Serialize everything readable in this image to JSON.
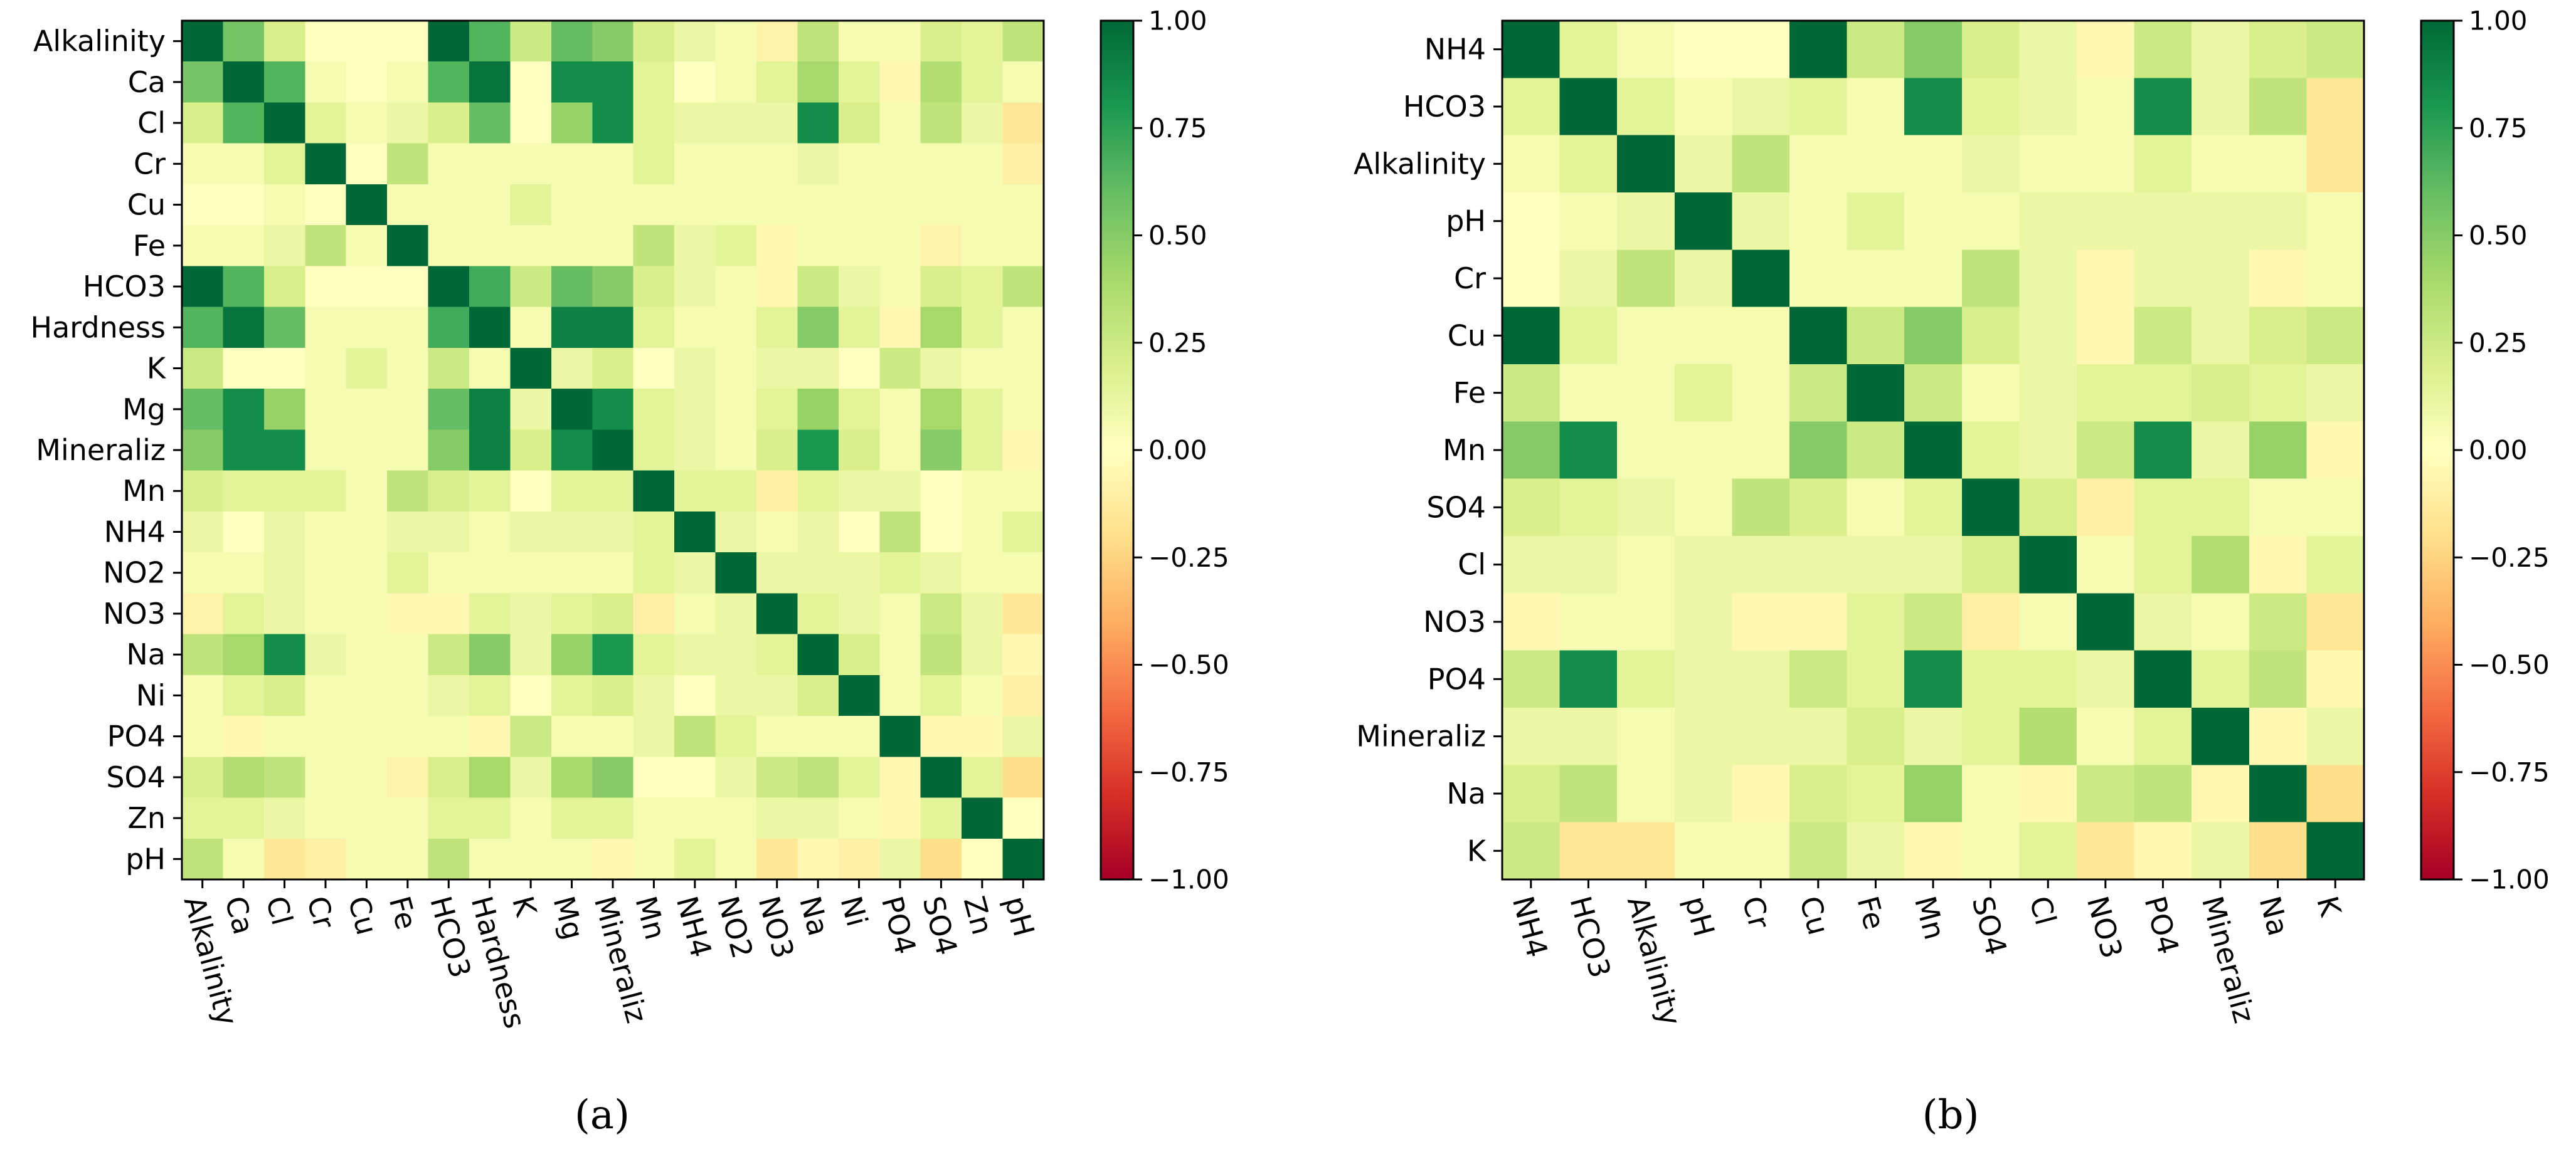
{
  "chart_data": [
    {
      "type": "heatmap",
      "panel_label": "(a)",
      "title": "",
      "xlabel": "",
      "ylabel": "",
      "labels": [
        "Alkalinity",
        "Ca",
        "Cl",
        "Cr",
        "Cu",
        "Fe",
        "HCO3",
        "Hardness",
        "K",
        "Mg",
        "Mineraliz",
        "Mn",
        "NH4",
        "NO2",
        "NO3",
        "Na",
        "Ni",
        "PO4",
        "SO4",
        "Zn",
        "pH"
      ],
      "matrix": [
        [
          1.0,
          0.55,
          0.2,
          0.0,
          0.0,
          0.0,
          1.0,
          0.65,
          0.25,
          0.6,
          0.5,
          0.2,
          0.1,
          0.05,
          -0.08,
          0.3,
          0.05,
          0.05,
          0.2,
          0.15,
          0.3
        ],
        [
          0.55,
          1.0,
          0.65,
          0.05,
          0.0,
          0.05,
          0.65,
          0.95,
          0.0,
          0.85,
          0.85,
          0.15,
          0.0,
          0.05,
          0.15,
          0.4,
          0.15,
          -0.05,
          0.35,
          0.15,
          0.05
        ],
        [
          0.2,
          0.65,
          1.0,
          0.15,
          0.05,
          0.1,
          0.2,
          0.6,
          0.0,
          0.45,
          0.85,
          0.15,
          0.1,
          0.1,
          0.1,
          0.85,
          0.2,
          0.05,
          0.3,
          0.1,
          -0.15
        ],
        [
          0.05,
          0.05,
          0.15,
          1.0,
          0.0,
          0.3,
          0.05,
          0.05,
          0.05,
          0.05,
          0.05,
          0.15,
          0.05,
          0.05,
          0.05,
          0.1,
          0.05,
          0.05,
          0.05,
          0.05,
          -0.1
        ],
        [
          0.0,
          0.0,
          0.05,
          0.0,
          1.0,
          0.05,
          0.05,
          0.05,
          0.15,
          0.05,
          0.05,
          0.05,
          0.05,
          0.05,
          0.05,
          0.05,
          0.05,
          0.05,
          0.05,
          0.05,
          0.05
        ],
        [
          0.05,
          0.05,
          0.1,
          0.3,
          0.05,
          1.0,
          0.05,
          0.05,
          0.05,
          0.05,
          0.05,
          0.3,
          0.1,
          0.15,
          -0.05,
          0.05,
          0.05,
          0.05,
          -0.08,
          0.05,
          0.05
        ],
        [
          1.0,
          0.65,
          0.2,
          0.0,
          0.0,
          0.0,
          1.0,
          0.7,
          0.25,
          0.6,
          0.5,
          0.2,
          0.1,
          0.05,
          -0.05,
          0.25,
          0.1,
          0.05,
          0.2,
          0.15,
          0.3
        ],
        [
          0.65,
          0.95,
          0.6,
          0.05,
          0.05,
          0.05,
          0.7,
          1.0,
          0.05,
          0.9,
          0.9,
          0.15,
          0.05,
          0.05,
          0.15,
          0.5,
          0.15,
          -0.05,
          0.4,
          0.15,
          0.05
        ],
        [
          0.25,
          0.0,
          0.0,
          0.05,
          0.15,
          0.05,
          0.25,
          0.05,
          1.0,
          0.1,
          0.2,
          0.0,
          0.1,
          0.05,
          0.1,
          0.1,
          0.0,
          0.25,
          0.1,
          0.05,
          0.05
        ],
        [
          0.6,
          0.85,
          0.45,
          0.05,
          0.05,
          0.05,
          0.6,
          0.9,
          0.1,
          1.0,
          0.85,
          0.15,
          0.1,
          0.05,
          0.15,
          0.45,
          0.15,
          0.05,
          0.4,
          0.15,
          0.05
        ],
        [
          0.5,
          0.85,
          0.85,
          0.05,
          0.05,
          0.05,
          0.5,
          0.9,
          0.2,
          0.85,
          1.0,
          0.15,
          0.1,
          0.05,
          0.2,
          0.8,
          0.2,
          0.05,
          0.5,
          0.15,
          -0.05
        ],
        [
          0.2,
          0.15,
          0.15,
          0.15,
          0.05,
          0.3,
          0.2,
          0.15,
          0.0,
          0.15,
          0.15,
          1.0,
          0.15,
          0.15,
          -0.1,
          0.15,
          0.1,
          0.1,
          0.0,
          0.05,
          0.05
        ],
        [
          0.1,
          0.0,
          0.1,
          0.05,
          0.05,
          0.1,
          0.1,
          0.05,
          0.1,
          0.1,
          0.1,
          0.15,
          1.0,
          0.1,
          0.05,
          0.1,
          0.0,
          0.3,
          0.0,
          0.05,
          0.15
        ],
        [
          0.05,
          0.05,
          0.1,
          0.05,
          0.05,
          0.15,
          0.05,
          0.05,
          0.05,
          0.05,
          0.05,
          0.15,
          0.1,
          1.0,
          0.1,
          0.1,
          0.1,
          0.15,
          0.1,
          0.05,
          0.05
        ],
        [
          -0.08,
          0.15,
          0.1,
          0.05,
          0.05,
          -0.05,
          -0.05,
          0.15,
          0.1,
          0.15,
          0.2,
          -0.1,
          0.05,
          0.1,
          1.0,
          0.15,
          0.1,
          0.05,
          0.25,
          0.1,
          -0.15
        ],
        [
          0.3,
          0.4,
          0.85,
          0.1,
          0.05,
          0.05,
          0.25,
          0.5,
          0.1,
          0.45,
          0.8,
          0.15,
          0.1,
          0.1,
          0.15,
          1.0,
          0.2,
          0.05,
          0.3,
          0.1,
          -0.05
        ],
        [
          0.05,
          0.15,
          0.2,
          0.05,
          0.05,
          0.05,
          0.1,
          0.15,
          0.0,
          0.15,
          0.2,
          0.1,
          0.0,
          0.1,
          0.1,
          0.2,
          1.0,
          0.05,
          0.15,
          0.05,
          -0.1
        ],
        [
          0.05,
          -0.05,
          0.05,
          0.05,
          0.05,
          0.05,
          0.05,
          -0.05,
          0.25,
          0.05,
          0.05,
          0.1,
          0.3,
          0.15,
          0.05,
          0.05,
          0.05,
          1.0,
          -0.05,
          -0.05,
          0.1
        ],
        [
          0.2,
          0.35,
          0.3,
          0.05,
          0.05,
          -0.08,
          0.2,
          0.4,
          0.1,
          0.4,
          0.5,
          0.0,
          0.0,
          0.1,
          0.25,
          0.3,
          0.15,
          -0.05,
          1.0,
          0.15,
          -0.2
        ],
        [
          0.15,
          0.15,
          0.1,
          0.05,
          0.05,
          0.05,
          0.15,
          0.15,
          0.05,
          0.15,
          0.15,
          0.05,
          0.05,
          0.05,
          0.1,
          0.1,
          0.05,
          -0.05,
          0.15,
          1.0,
          0.0
        ],
        [
          0.3,
          0.05,
          -0.15,
          -0.1,
          0.05,
          0.05,
          0.3,
          0.05,
          0.05,
          0.05,
          -0.05,
          0.05,
          0.15,
          0.05,
          -0.15,
          -0.05,
          -0.1,
          0.1,
          -0.2,
          0.0,
          1.0
        ]
      ],
      "colorbar": {
        "min": -1.0,
        "max": 1.0,
        "ticks": [
          "1.00",
          "0.75",
          "0.50",
          "0.25",
          "0.00",
          "−0.25",
          "−0.50",
          "−0.75",
          "−1.00"
        ]
      },
      "colormap": [
        "#a50026",
        "#d73027",
        "#f46d43",
        "#fdae61",
        "#fee08b",
        "#ffffbf",
        "#d9ef8b",
        "#a6d96a",
        "#66bd63",
        "#1a9850",
        "#006837"
      ]
    },
    {
      "type": "heatmap",
      "panel_label": "(b)",
      "title": "",
      "xlabel": "",
      "ylabel": "",
      "labels": [
        "NH4",
        "HCO3",
        "Alkalinity",
        "pH",
        "Cr",
        "Cu",
        "Fe",
        "Mn",
        "SO4",
        "Cl",
        "NO3",
        "PO4",
        "Mineraliz",
        "Na",
        "K"
      ],
      "matrix": [
        [
          1.0,
          0.15,
          0.05,
          0.0,
          0.0,
          1.0,
          0.25,
          0.5,
          0.2,
          0.1,
          -0.05,
          0.25,
          0.1,
          0.2,
          0.25
        ],
        [
          0.15,
          1.0,
          0.15,
          0.05,
          0.1,
          0.15,
          0.05,
          0.85,
          0.15,
          0.1,
          0.05,
          0.85,
          0.1,
          0.3,
          -0.15
        ],
        [
          0.05,
          0.15,
          1.0,
          0.1,
          0.3,
          0.05,
          0.05,
          0.05,
          0.1,
          0.05,
          0.05,
          0.15,
          0.05,
          0.05,
          -0.15
        ],
        [
          0.0,
          0.05,
          0.1,
          1.0,
          0.1,
          0.05,
          0.15,
          0.05,
          0.05,
          0.1,
          0.1,
          0.1,
          0.1,
          0.1,
          0.05
        ],
        [
          0.0,
          0.1,
          0.3,
          0.1,
          1.0,
          0.05,
          0.05,
          0.05,
          0.3,
          0.1,
          -0.05,
          0.1,
          0.1,
          -0.05,
          0.05
        ],
        [
          1.0,
          0.15,
          0.05,
          0.05,
          0.05,
          1.0,
          0.25,
          0.5,
          0.2,
          0.1,
          -0.05,
          0.25,
          0.1,
          0.2,
          0.25
        ],
        [
          0.25,
          0.05,
          0.05,
          0.15,
          0.05,
          0.25,
          1.0,
          0.25,
          0.05,
          0.1,
          0.15,
          0.15,
          0.2,
          0.15,
          0.1
        ],
        [
          0.5,
          0.85,
          0.05,
          0.05,
          0.05,
          0.5,
          0.25,
          1.0,
          0.15,
          0.1,
          0.25,
          0.85,
          0.1,
          0.45,
          -0.05
        ],
        [
          0.2,
          0.15,
          0.1,
          0.05,
          0.3,
          0.2,
          0.05,
          0.15,
          1.0,
          0.2,
          -0.1,
          0.15,
          0.15,
          0.05,
          0.05
        ],
        [
          0.1,
          0.1,
          0.05,
          0.1,
          0.1,
          0.1,
          0.1,
          0.1,
          0.2,
          1.0,
          0.05,
          0.15,
          0.35,
          -0.05,
          0.15
        ],
        [
          -0.05,
          0.05,
          0.05,
          0.1,
          -0.05,
          -0.05,
          0.15,
          0.25,
          -0.1,
          0.05,
          1.0,
          0.1,
          0.05,
          0.25,
          -0.15
        ],
        [
          0.25,
          0.85,
          0.15,
          0.1,
          0.1,
          0.25,
          0.15,
          0.85,
          0.15,
          0.15,
          0.1,
          1.0,
          0.15,
          0.3,
          -0.05
        ],
        [
          0.1,
          0.1,
          0.05,
          0.1,
          0.1,
          0.1,
          0.2,
          0.1,
          0.15,
          0.35,
          0.05,
          0.15,
          1.0,
          -0.05,
          0.1
        ],
        [
          0.2,
          0.3,
          0.05,
          0.1,
          -0.05,
          0.2,
          0.15,
          0.45,
          0.05,
          -0.05,
          0.25,
          0.3,
          -0.05,
          1.0,
          -0.2
        ],
        [
          0.25,
          -0.15,
          -0.15,
          0.05,
          0.05,
          0.25,
          0.1,
          -0.05,
          0.05,
          0.15,
          -0.15,
          -0.05,
          0.1,
          -0.2,
          1.0
        ]
      ],
      "colorbar": {
        "min": -1.0,
        "max": 1.0,
        "ticks": [
          "1.00",
          "0.75",
          "0.50",
          "0.25",
          "0.00",
          "−0.25",
          "−0.50",
          "−0.75",
          "−1.00"
        ]
      },
      "colormap": [
        "#a50026",
        "#d73027",
        "#f46d43",
        "#fdae61",
        "#fee08b",
        "#ffffbf",
        "#d9ef8b",
        "#a6d96a",
        "#66bd63",
        "#1a9850",
        "#006837"
      ]
    }
  ]
}
